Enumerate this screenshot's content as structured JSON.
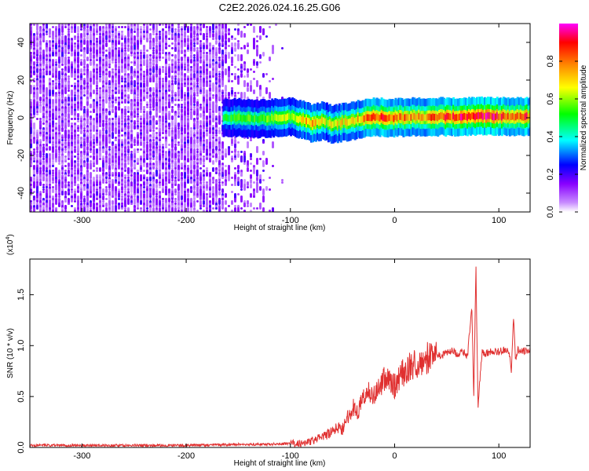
{
  "title": "C2E2.2026.024.16.25.G06",
  "chart_data": [
    {
      "type": "heatmap",
      "xlabel": "Height of straight line (km)",
      "ylabel": "Frequency (Hz)",
      "xlim": [
        -350,
        130
      ],
      "ylim": [
        -50,
        50
      ],
      "x_ticks": [
        -300,
        -200,
        -100,
        0,
        100
      ],
      "x_tick_labels": [
        "-300",
        "-200",
        "-100",
        "0",
        "100"
      ],
      "y_ticks": [
        -40,
        -20,
        0,
        20,
        40
      ],
      "y_tick_labels": [
        "-40",
        "-20",
        "0",
        "20",
        "40"
      ],
      "colorbar": {
        "label": "Normalized spectral amplitude",
        "range": [
          0,
          1
        ],
        "ticks": [
          0.0,
          0.2,
          0.4,
          0.6,
          0.8
        ],
        "tick_labels": [
          "0.0",
          "0.2",
          "0.4",
          "0.6",
          "0.8"
        ],
        "colors": [
          "#ffffff",
          "#8800ff",
          "#0000ff",
          "#00ffff",
          "#00ff00",
          "#ffff00",
          "#ff8800",
          "#ff0000",
          "#ff00ff"
        ]
      },
      "noise_region": {
        "x_start": -350,
        "x_end": -105,
        "dense_until": -165,
        "level": 0.2
      },
      "signal_band": {
        "x": [
          -165,
          -150,
          -130,
          -110,
          -100,
          -90,
          -80,
          -70,
          -60,
          -50,
          -40,
          -30,
          -20,
          -10,
          0,
          20,
          40,
          60,
          80,
          100,
          130
        ],
        "center": [
          0,
          0,
          -0.5,
          0,
          0.5,
          -1,
          -3,
          -1.5,
          -3.5,
          -2.5,
          -1.5,
          -0.5,
          0.5,
          0,
          0,
          0.5,
          0.5,
          0.5,
          1,
          0.8,
          0.5
        ],
        "amplitude": [
          0.5,
          0.55,
          0.55,
          0.6,
          0.65,
          0.7,
          0.75,
          0.65,
          0.7,
          0.7,
          0.72,
          0.8,
          0.85,
          0.9,
          0.82,
          0.78,
          0.85,
          0.9,
          0.92,
          0.9,
          0.85
        ]
      }
    },
    {
      "type": "line",
      "xlabel": "Height of straight line (km)",
      "ylabel": "SNR (10 * v/v)",
      "multiplier": "(x10^4)",
      "multiplier_base": "(x10",
      "multiplier_exp": "4",
      "xlim": [
        -350,
        130
      ],
      "ylim": [
        0,
        1.85
      ],
      "x_ticks": [
        -300,
        -200,
        -100,
        0,
        100
      ],
      "x_tick_labels": [
        "-300",
        "-200",
        "-100",
        "0",
        "100"
      ],
      "y_ticks": [
        0,
        0.5,
        1.0,
        1.5
      ],
      "y_tick_labels": [
        "0.0",
        "0.5",
        "1.0",
        "1.5"
      ],
      "line_color": "#e03030",
      "series": [
        {
          "x": [
            -350,
            -300,
            -250,
            -200,
            -150,
            -120,
            -100,
            -90,
            -80,
            -70,
            -60,
            -55,
            -50,
            -45,
            -40,
            -35,
            -30,
            -25,
            -20,
            -15,
            -10,
            -5,
            0,
            5,
            10,
            15,
            20,
            25,
            30,
            35,
            40,
            45,
            50,
            55,
            60,
            65,
            70,
            74,
            76,
            78,
            80,
            82,
            84,
            86,
            90,
            95,
            100,
            105,
            110,
            112,
            114,
            116,
            118,
            120,
            125,
            130
          ],
          "values": [
            0.02,
            0.02,
            0.02,
            0.02,
            0.03,
            0.03,
            0.04,
            0.04,
            0.06,
            0.1,
            0.15,
            0.2,
            0.18,
            0.3,
            0.4,
            0.35,
            0.5,
            0.55,
            0.5,
            0.6,
            0.68,
            0.65,
            0.6,
            0.7,
            0.75,
            0.8,
            0.82,
            0.85,
            0.87,
            0.9,
            0.92,
            0.9,
            0.93,
            0.95,
            0.92,
            0.94,
            0.9,
            1.4,
            0.5,
            1.78,
            0.4,
            0.7,
            0.95,
            0.92,
            0.93,
            0.95,
            0.94,
            0.96,
            0.95,
            0.7,
            1.3,
            0.85,
            0.97,
            0.95,
            0.95,
            0.95
          ]
        }
      ]
    }
  ]
}
